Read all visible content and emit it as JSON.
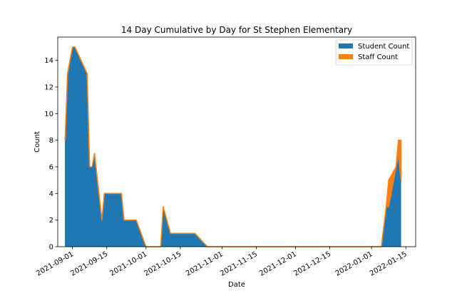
{
  "chart_data": {
    "type": "area",
    "stacked": true,
    "title": "14 Day Cumulative by Day for St Stephen Elementary",
    "xlabel": "Date",
    "ylabel": "Count",
    "x_scale": "date",
    "xlim": [
      "2021-08-26",
      "2022-01-19"
    ],
    "ylim": [
      0,
      15.75
    ],
    "x_ticks": [
      "2021-09-01",
      "2021-09-15",
      "2021-10-01",
      "2021-10-15",
      "2021-11-01",
      "2021-11-15",
      "2021-12-01",
      "2021-12-15",
      "2022-01-01",
      "2022-01-15"
    ],
    "y_ticks": [
      0,
      2,
      4,
      6,
      8,
      10,
      12,
      14
    ],
    "legend_position": "top-right",
    "grid": false,
    "series": [
      {
        "name": "Student Count",
        "color": "#1f77b4",
        "points": [
          [
            "2021-08-29",
            8
          ],
          [
            "2021-08-30",
            13
          ],
          [
            "2021-09-01",
            15
          ],
          [
            "2021-09-02",
            15
          ],
          [
            "2021-09-07",
            13
          ],
          [
            "2021-09-08",
            6
          ],
          [
            "2021-09-09",
            6
          ],
          [
            "2021-09-10",
            7
          ],
          [
            "2021-09-13",
            2
          ],
          [
            "2021-09-14",
            4
          ],
          [
            "2021-09-21",
            4
          ],
          [
            "2021-09-22",
            2
          ],
          [
            "2021-09-27",
            2
          ],
          [
            "2021-10-01",
            0
          ],
          [
            "2021-10-07",
            0
          ],
          [
            "2021-10-08",
            3
          ],
          [
            "2021-10-11",
            1
          ],
          [
            "2021-10-21",
            1
          ],
          [
            "2021-10-26",
            0
          ],
          [
            "2022-01-05",
            0
          ],
          [
            "2022-01-07",
            3
          ],
          [
            "2022-01-08",
            3
          ],
          [
            "2022-01-11",
            6
          ],
          [
            "2022-01-12",
            7
          ],
          [
            "2022-01-13",
            5
          ]
        ]
      },
      {
        "name": "Staff Count",
        "color": "#ff7f0e",
        "points": [
          [
            "2021-08-29",
            0
          ],
          [
            "2021-08-30",
            0
          ],
          [
            "2021-09-01",
            0
          ],
          [
            "2021-09-02",
            0
          ],
          [
            "2021-09-07",
            0
          ],
          [
            "2021-09-08",
            0
          ],
          [
            "2021-09-09",
            0
          ],
          [
            "2021-09-10",
            0
          ],
          [
            "2021-09-13",
            0
          ],
          [
            "2021-09-14",
            0
          ],
          [
            "2021-09-21",
            0
          ],
          [
            "2021-09-22",
            0
          ],
          [
            "2021-09-27",
            0
          ],
          [
            "2021-10-01",
            0
          ],
          [
            "2021-10-07",
            0
          ],
          [
            "2021-10-08",
            0
          ],
          [
            "2021-10-11",
            0
          ],
          [
            "2021-10-21",
            0
          ],
          [
            "2021-10-26",
            0
          ],
          [
            "2022-01-05",
            0
          ],
          [
            "2022-01-07",
            0
          ],
          [
            "2022-01-08",
            2
          ],
          [
            "2022-01-11",
            0
          ],
          [
            "2022-01-12",
            1
          ],
          [
            "2022-01-13",
            3
          ]
        ]
      }
    ]
  }
}
